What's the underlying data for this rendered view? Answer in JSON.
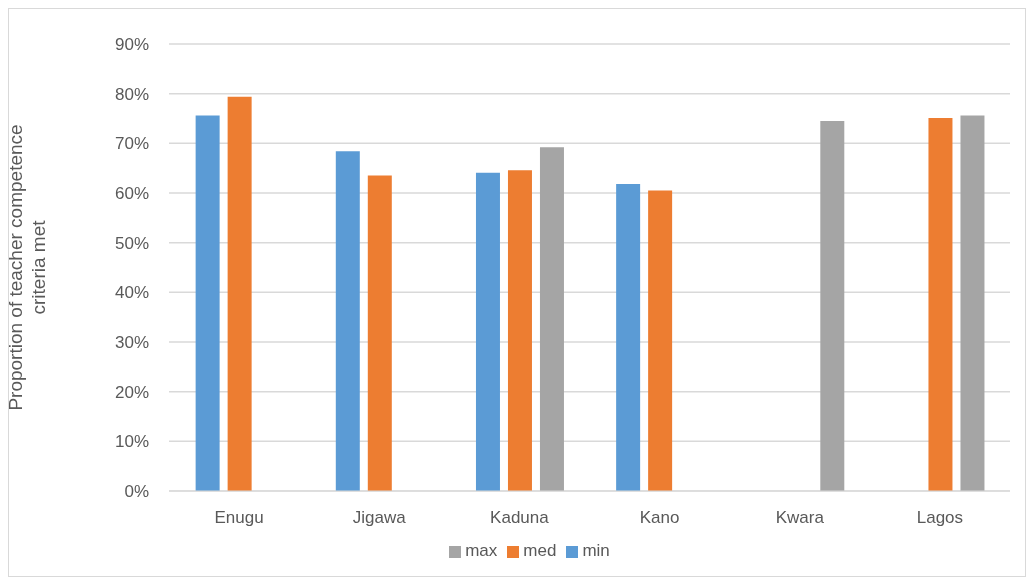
{
  "chart_data": {
    "type": "bar",
    "ylabel": "Proportion of teacher competence criteria met",
    "categories": [
      "Enugu",
      "Jigawa",
      "Kaduna",
      "Kano",
      "Kwara",
      "Lagos"
    ],
    "series": [
      {
        "name": "min",
        "color": "#5b9bd5",
        "values": [
          75.6,
          68.4,
          64.1,
          61.8,
          null,
          null
        ]
      },
      {
        "name": "med",
        "color": "#ed7d31",
        "values": [
          79.4,
          63.5,
          64.6,
          60.5,
          null,
          75.1
        ]
      },
      {
        "name": "max",
        "color": "#a5a5a5",
        "values": [
          null,
          null,
          69.2,
          null,
          74.5,
          75.6
        ]
      }
    ],
    "ylim": [
      0,
      90
    ],
    "yticks": [
      {
        "value": 0,
        "label": "0%"
      },
      {
        "value": 10,
        "label": "10%"
      },
      {
        "value": 20,
        "label": "20%"
      },
      {
        "value": 30,
        "label": "30%"
      },
      {
        "value": 40,
        "label": "40%"
      },
      {
        "value": 50,
        "label": "50%"
      },
      {
        "value": 60,
        "label": "60%"
      },
      {
        "value": 70,
        "label": "70%"
      },
      {
        "value": 80,
        "label": "80%"
      },
      {
        "value": 90,
        "label": "90%"
      }
    ],
    "grid": "y",
    "legend": "bottom"
  }
}
